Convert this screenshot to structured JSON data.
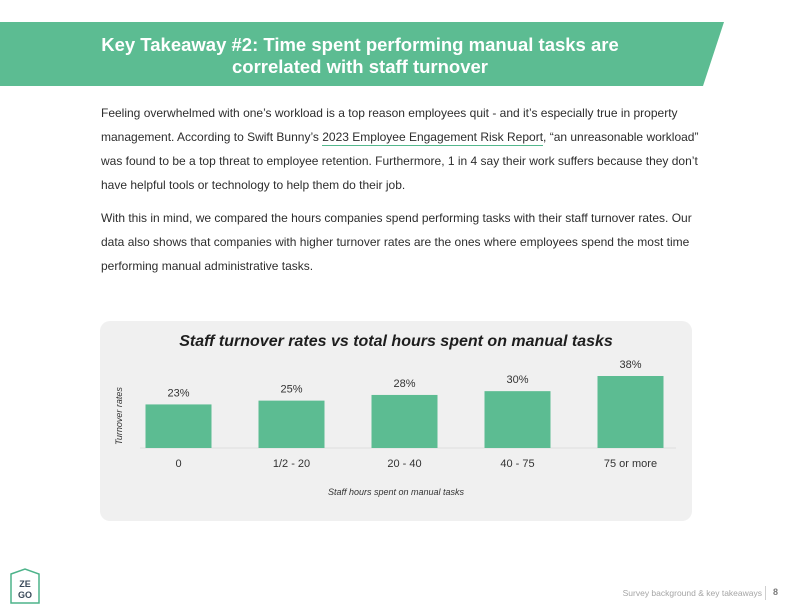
{
  "header": {
    "title_line1": "Key Takeaway #2: Time spent performing manual tasks are",
    "title_line2": "correlated with staff turnover"
  },
  "body": {
    "para1_before": "Feeling overwhelmed with one’s workload is a top reason employees quit - and it’s especially true in property management. According to Swift Bunny’s ",
    "para1_link": "2023 Employee Engagement Risk Report",
    "para1_after": ", “an unreasonable workload” was found to be a top threat to employee retention. Furthermore, 1 in 4 say their work suffers because they don’t have helpful tools or technology to help them do their job.",
    "para2": "With this in mind, we compared the hours companies spend performing tasks with their staff turnover rates. Our data also shows that companies with higher turnover rates are the ones where employees spend the most time performing manual administrative tasks."
  },
  "chart_data": {
    "type": "bar",
    "title": "Staff turnover rates vs total hours spent on manual tasks",
    "xlabel": "Staff hours spent on manual tasks",
    "ylabel": "Turnover rates",
    "categories": [
      "0",
      "1/2 - 20",
      "20 - 40",
      "40 - 75",
      "75 or more"
    ],
    "values": [
      23,
      25,
      28,
      30,
      38
    ],
    "value_labels": [
      "23%",
      "25%",
      "28%",
      "30%",
      "38%"
    ],
    "unit": "%",
    "grid": false,
    "bar_color": "#5cbc92"
  },
  "footer": {
    "logo_top": "ZE",
    "logo_bottom": "GO",
    "section_label": "Survey background & key takeaways",
    "page_number": "8"
  },
  "colors": {
    "accent": "#5cbc92",
    "card_bg": "#f0f0f0"
  }
}
